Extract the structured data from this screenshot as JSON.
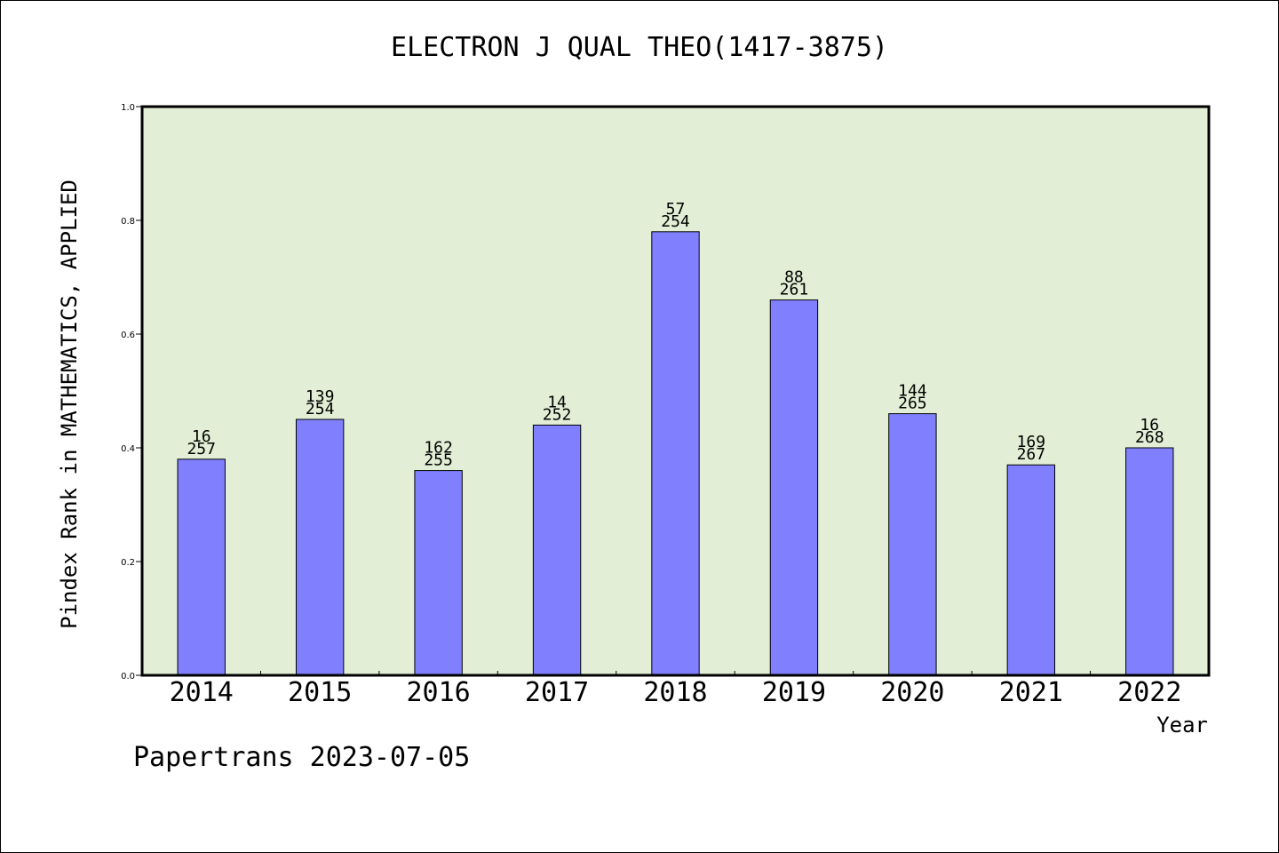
{
  "colors": {
    "plot_background": "#e2efd6",
    "bar_fill": "#8080ff",
    "bar_stroke": "#000000",
    "axis": "#000000"
  },
  "chart_data": {
    "type": "bar",
    "title": "ELECTRON J QUAL THEO(1417-3875)",
    "xlabel": "Year",
    "ylabel": "Pindex Rank in MATHEMATICS, APPLIED",
    "ylim": [
      0,
      1.0
    ],
    "yticks": [
      "0.0",
      "0.2",
      "0.4",
      "0.6",
      "0.8",
      "1.0"
    ],
    "grid": false,
    "categories": [
      "2014",
      "2015",
      "2016",
      "2017",
      "2018",
      "2019",
      "2020",
      "2021",
      "2022"
    ],
    "values": [
      0.38,
      0.45,
      0.36,
      0.44,
      0.78,
      0.66,
      0.46,
      0.37,
      0.4
    ],
    "labels_top": [
      "16",
      "139",
      "162",
      "14",
      "57",
      "88",
      "144",
      "169",
      "16"
    ],
    "labels_bottom": [
      "257",
      "254",
      "255",
      "252",
      "254",
      "261",
      "265",
      "267",
      "268"
    ]
  },
  "footer": "Papertrans 2023-07-05"
}
